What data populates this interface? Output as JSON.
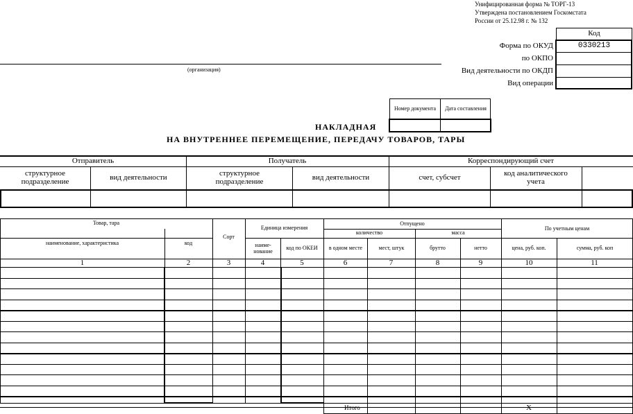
{
  "header": {
    "form_line1": "Унифицированная форма № ТОРГ-13",
    "form_line2": "Утверждена постановлением Госкомстата",
    "form_line3": "России от 25.12.98 г. № 132"
  },
  "codes": {
    "kod_label": "Код",
    "okud_label": "Форма по ОКУД",
    "okud_value": "0330213",
    "okpo_label": "по ОКПО",
    "okdp_label": "Вид деятельности по ОКДП",
    "operation_label": "Вид операции"
  },
  "organization_caption": "(организация)",
  "doc_boxes": {
    "number_label": "Номер документа",
    "date_label": "Дата составления"
  },
  "title": {
    "line1": "НАКЛАДНАЯ",
    "line2": "НА ВНУТРЕННЕЕ ПЕРЕМЕЩЕНИЕ, ПЕРЕДАЧУ ТОВАРОВ, ТАРЫ"
  },
  "parties": {
    "sender": "Отправитель",
    "receiver": "Получатель",
    "corr_account": "Корреспондирующий счет",
    "sender_unit": "структурное подразделение",
    "sender_activity": "вид деятельности",
    "receiver_unit": "структурное подразделение",
    "receiver_activity": "вид деятельности",
    "account": "счет, субсчет",
    "analytic_code": "код аналитического учета"
  },
  "goods_table": {
    "goods_tare": "Товар, тара",
    "name_desc": "наименование, характеристика",
    "code": "код",
    "grade": "Сорт",
    "unit": "Единица измерения",
    "unit_name": "наиме-нование",
    "okei": "код по ОКЕИ",
    "released": "Отпущено",
    "quantity": "количество",
    "mass": "масса",
    "in_one_place": "в одном месте",
    "places_pcs": "мест, штук",
    "gross": "брутто",
    "net": "нетто",
    "by_prices": "По учетным ценам",
    "price": "цена, руб. коп.",
    "sum": "сумма, руб. коп",
    "col_numbers": [
      "1",
      "2",
      "3",
      "4",
      "5",
      "6",
      "7",
      "8",
      "9",
      "10",
      "11"
    ],
    "total_label": "Итого",
    "x_mark": "X"
  }
}
